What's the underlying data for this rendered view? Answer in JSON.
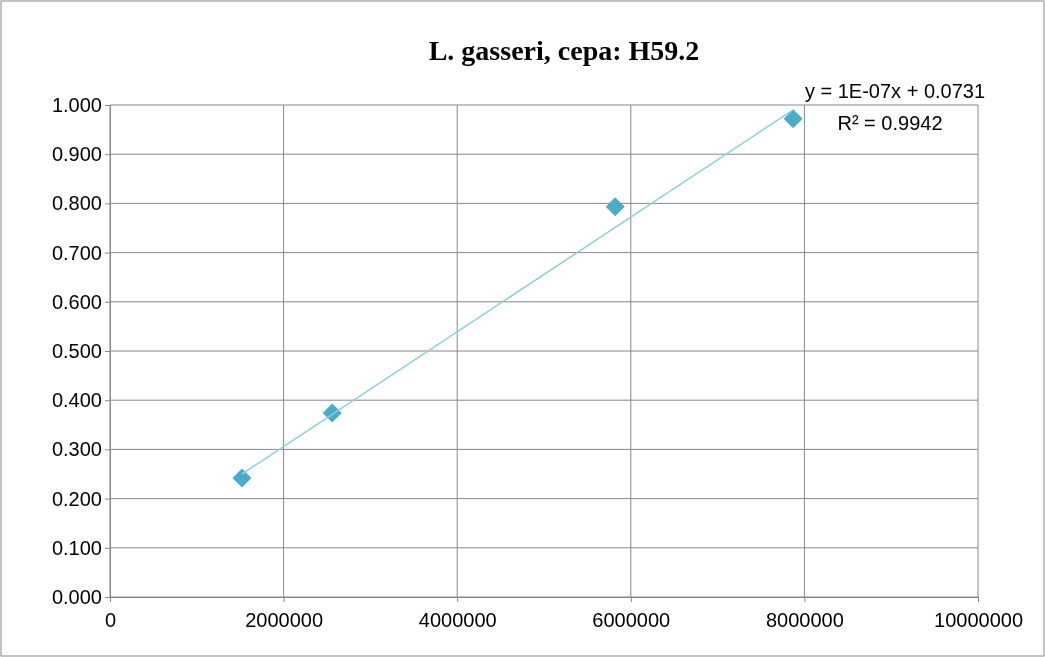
{
  "chart_data": {
    "type": "scatter",
    "title": "L. gasseri, cepa: H59.2",
    "series": [
      {
        "color": "#4bacc6",
        "marker": "diamond",
        "x": [
          1520000,
          2560000,
          5820000,
          7870000
        ],
        "values": [
          0.242,
          0.374,
          0.793,
          0.972
        ]
      },
      {
        "type": "line",
        "color": "#8ccfdf",
        "marker": "none",
        "x": [
          1520000,
          7870000
        ],
        "values": [
          0.25,
          0.99
        ]
      }
    ],
    "xlim": [
      0,
      10000000
    ],
    "xticks": [
      0,
      2000000,
      4000000,
      6000000,
      8000000,
      10000000
    ],
    "ylim": [
      0,
      1
    ],
    "yticks": [
      {
        "value": 0,
        "label": "0.000"
      },
      {
        "value": 0.1,
        "label": "0.100"
      },
      {
        "value": 0.2,
        "label": "0.200"
      },
      {
        "value": 0.3,
        "label": "0.300"
      },
      {
        "value": 0.4,
        "label": "0.400"
      },
      {
        "value": 0.5,
        "label": "0.500"
      },
      {
        "value": 0.6,
        "label": "0.600"
      },
      {
        "value": 0.7,
        "label": "0.700"
      },
      {
        "value": 0.8,
        "label": "0.800"
      },
      {
        "value": 0.9,
        "label": "0.900"
      },
      {
        "value": 1,
        "label": "1.000"
      }
    ],
    "grid": true,
    "annotations": [
      "y = 1E-07x + 0.0731",
      "R² = 0.9942"
    ]
  }
}
